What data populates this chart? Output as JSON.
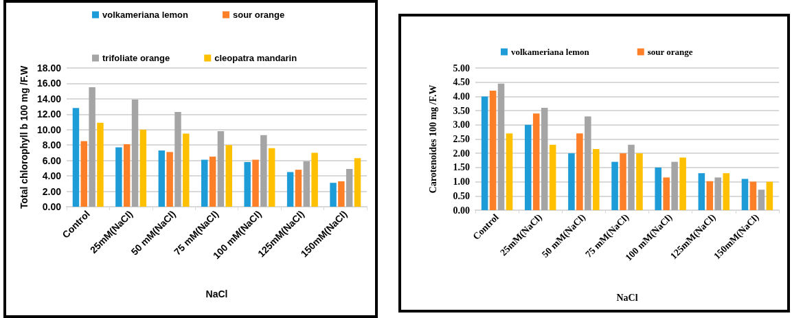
{
  "chart_data": [
    {
      "type": "bar",
      "xlabel": "NaCl",
      "ylabel": "Total chlorophyll b 100 mg /F.W",
      "categories": [
        "Control",
        "25mM(NaCl)",
        "50 mM(NaCl)",
        "75 mM(NaCl)",
        "100 mM(NaCl)",
        "125mM(NaCl)",
        "150mM(NaCl)"
      ],
      "series": [
        {
          "name": "volkameriana lemon",
          "color": "#1e9cd7",
          "values": [
            12.8,
            7.7,
            7.3,
            6.1,
            5.8,
            4.5,
            3.1
          ]
        },
        {
          "name": "sour orange",
          "color": "#fd7f27",
          "values": [
            8.5,
            8.1,
            7.1,
            6.5,
            6.1,
            4.8,
            3.3
          ]
        },
        {
          "name": "trifoliate orange",
          "color": "#a5a5a5",
          "values": [
            15.5,
            13.9,
            12.3,
            9.8,
            9.3,
            5.9,
            4.9
          ]
        },
        {
          "name": "cleopatra mandarin",
          "color": "#ffc000",
          "values": [
            10.9,
            10.0,
            9.5,
            8.0,
            7.6,
            7.0,
            6.3
          ]
        }
      ],
      "ylim": [
        0,
        18
      ],
      "yticks": [
        {
          "value": 0,
          "label": "0.00"
        },
        {
          "value": 2,
          "label": "2.00"
        },
        {
          "value": 4,
          "label": "4.00"
        },
        {
          "value": 6,
          "label": "6.00"
        },
        {
          "value": 8,
          "label": "8.00"
        },
        {
          "value": 10,
          "label": "10.00"
        },
        {
          "value": 12,
          "label": "12.00"
        },
        {
          "value": 14,
          "label": "14.00"
        },
        {
          "value": 16,
          "label": "16.00"
        },
        {
          "value": 18,
          "label": "18.00"
        }
      ],
      "grid": "y",
      "legend": "top"
    },
    {
      "type": "bar",
      "xlabel": "NaCl",
      "ylabel": "Carotenoides 100 mg /F.W",
      "categories": [
        "Control",
        "25mM(NaCl)",
        "50 mM(NaCl)",
        "75 mM(NaCl)",
        "100 mM(NaCl)",
        "125mM(NaCl)",
        "150mM(NaCl)"
      ],
      "series": [
        {
          "name": "volkameriana lemon",
          "color": "#1e9cd7",
          "values": [
            4.0,
            3.0,
            2.0,
            1.7,
            1.5,
            1.3,
            1.1
          ]
        },
        {
          "name": "sour orange",
          "color": "#fd7f27",
          "values": [
            4.2,
            3.4,
            2.7,
            2.0,
            1.15,
            1.02,
            1.0
          ]
        },
        {
          "color": "#a5a5a5",
          "values": [
            4.45,
            3.6,
            3.3,
            2.3,
            1.7,
            1.15,
            0.72
          ]
        },
        {
          "color": "#ffc000",
          "values": [
            2.7,
            2.3,
            2.15,
            2.0,
            1.85,
            1.3,
            1.0
          ]
        }
      ],
      "ylim": [
        0,
        5
      ],
      "yticks": [
        {
          "value": 0,
          "label": "0.00"
        },
        {
          "value": 0.5,
          "label": "0.50"
        },
        {
          "value": 1,
          "label": "1.00"
        },
        {
          "value": 1.5,
          "label": "1.50"
        },
        {
          "value": 2,
          "label": "2.00"
        },
        {
          "value": 2.5,
          "label": "2.50"
        },
        {
          "value": 3,
          "label": "3.00"
        },
        {
          "value": 3.5,
          "label": "3.50"
        },
        {
          "value": 4,
          "label": "4.00"
        },
        {
          "value": 4.5,
          "label": "4.50"
        },
        {
          "value": 5,
          "label": "5.00"
        }
      ],
      "grid": "y",
      "legend": "top"
    }
  ]
}
